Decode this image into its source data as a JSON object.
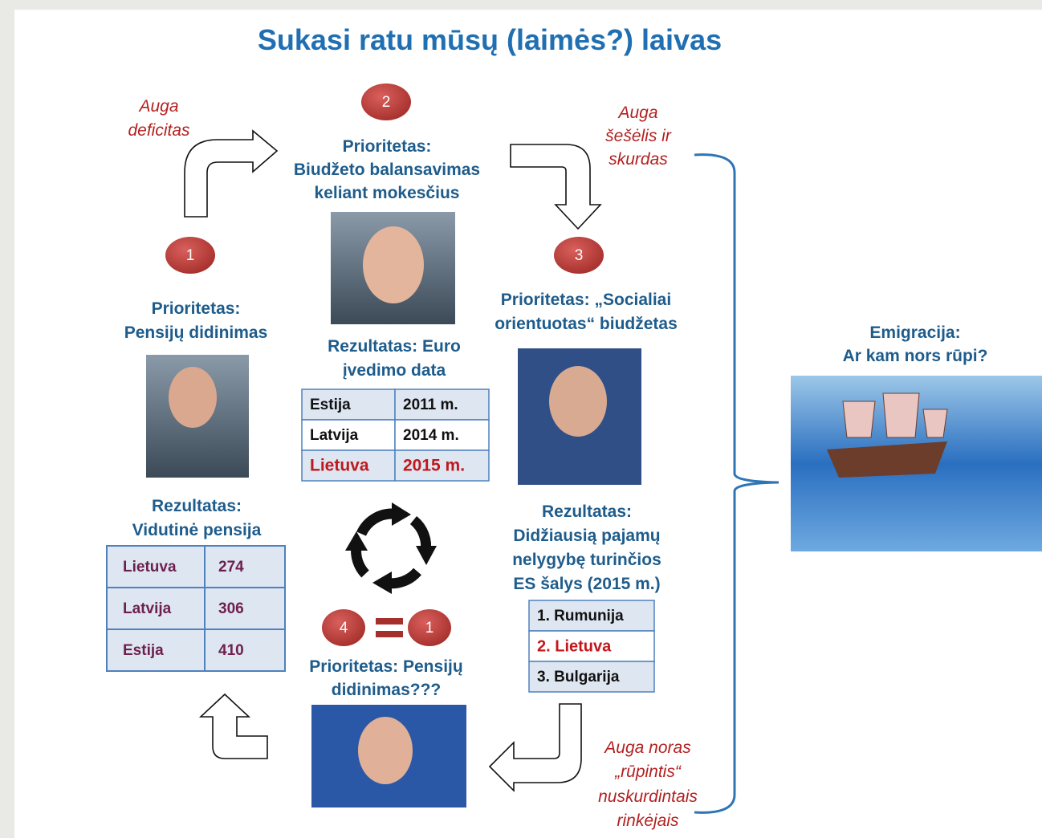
{
  "title": "Sukasi ratu mūsų (laimės?) laivas",
  "badges": [
    "2",
    "1",
    "3",
    "4",
    "1"
  ],
  "notes": {
    "deficit": [
      "Auga",
      "deficitas"
    ],
    "shadow": [
      "Auga",
      "šešėlis ir",
      "skurdas"
    ],
    "care": [
      "Auga noras",
      "„rūpintis“",
      "nuskurdintais",
      "rinkėjais"
    ]
  },
  "blocks": {
    "p2": [
      "Prioritetas:",
      "Biudžeto balansavimas",
      "keliant mokesčius"
    ],
    "p1": [
      "Prioritetas:",
      "Pensijų didinimas"
    ],
    "r2": [
      "Rezultatas: Euro",
      "įvedimo data"
    ],
    "p3": [
      "Prioritetas: „Socialiai",
      "orientuotas“ biudžetas"
    ],
    "r1": [
      "Rezultatas:",
      "Vidutinė  pensija"
    ],
    "r3": [
      "Rezultatas:",
      "Didžiausią pajamų",
      "nelygybę turinčios",
      "ES šalys (2015 m.)"
    ],
    "p4": [
      "Prioritetas: Pensijų",
      "didinimas???"
    ],
    "emigration": [
      "Emigracija:",
      "Ar kam nors rūpi?"
    ]
  },
  "euro_table": [
    [
      "Estija",
      "2011 m."
    ],
    [
      "Latvija",
      "2014 m."
    ],
    [
      "Lietuva",
      "2015 m."
    ]
  ],
  "pension_table": [
    [
      "Lietuva",
      "274"
    ],
    [
      "Latvija",
      "306"
    ],
    [
      "Estija",
      "410"
    ]
  ],
  "inequality_table": [
    "1. Rumunija",
    "2. Lietuva",
    "3. Bulgarija"
  ]
}
